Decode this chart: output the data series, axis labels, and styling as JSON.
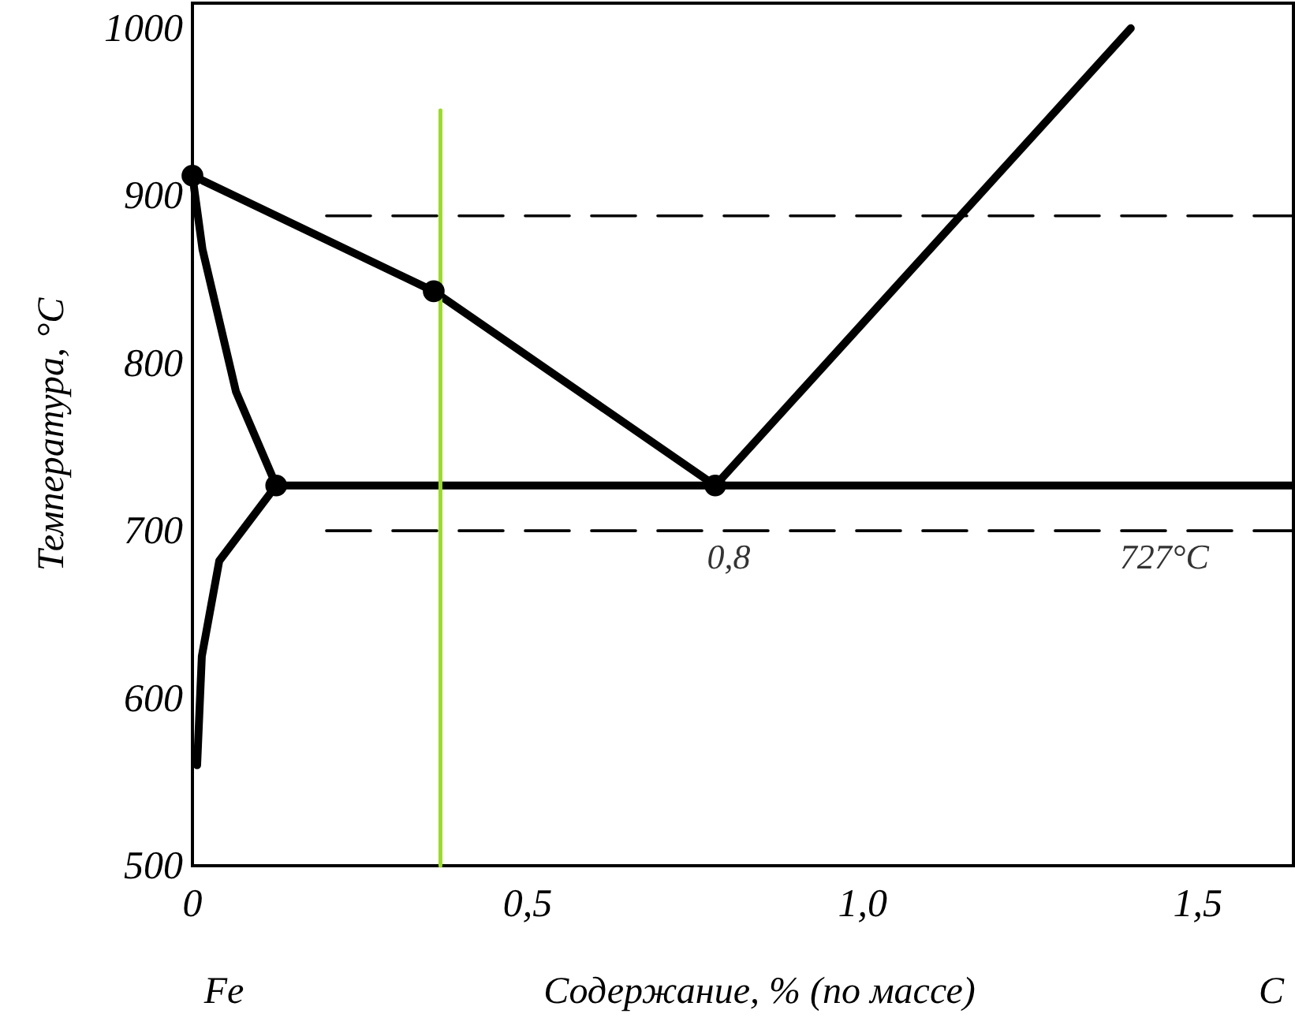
{
  "chart_data": {
    "type": "line",
    "xlabel": "Содержание, % (по массе)",
    "ylabel": "Температура, °C",
    "xlim": [
      0,
      1.645
    ],
    "ylim": [
      500,
      1015
    ],
    "xticks": [
      {
        "value": 0,
        "label": "0"
      },
      {
        "value": 0.5,
        "label": "0,5"
      },
      {
        "value": 1,
        "label": "1,0"
      },
      {
        "value": 1.5,
        "label": "1,5"
      }
    ],
    "yticks": [
      500,
      600,
      700,
      800,
      900,
      1000
    ],
    "grid": false,
    "series": [
      {
        "color": "#000000",
        "line_style": "solid",
        "x": [
          0,
          0.36,
          0.78
        ],
        "values": [
          912,
          843,
          727
        ]
      },
      {
        "color": "#000000",
        "line_style": "solid",
        "x": [
          0.78,
          1.4
        ],
        "values": [
          727,
          1000
        ]
      },
      {
        "color": "#000000",
        "line_style": "solid",
        "x": [
          0.12,
          1.645
        ],
        "values": [
          727,
          727
        ]
      },
      {
        "color": "#000000",
        "line_style": "solid",
        "x": [
          0,
          0.015,
          0.065,
          0.125
        ],
        "values": [
          912,
          868,
          783,
          727
        ]
      },
      {
        "color": "#000000",
        "line_style": "solid",
        "x": [
          0.125,
          0.04,
          0.014,
          0.007
        ],
        "values": [
          727,
          682,
          625,
          560
        ]
      },
      {
        "color": "#000000",
        "line_style": "dashed",
        "x": [
          0.2,
          1.645
        ],
        "values": [
          888,
          888
        ]
      },
      {
        "color": "#000000",
        "line_style": "dashed",
        "x": [
          0.2,
          1.645
        ],
        "values": [
          700,
          700
        ]
      },
      {
        "color": "#99dd22",
        "line_style": "solid",
        "x": [
          0.37,
          0.37
        ],
        "values": [
          500,
          951
        ]
      },
      {
        "type": "scatter",
        "color": "#000000",
        "marker": "circle",
        "x": [
          0,
          0.36,
          0.125,
          0.78
        ],
        "values": [
          912,
          843,
          727,
          727
        ]
      }
    ],
    "annotations": [
      {
        "text": "0,8",
        "x": 0.8,
        "y": 700
      },
      {
        "text": "727°C",
        "x": 1.45,
        "y": 700
      },
      "Fe",
      "C"
    ]
  }
}
